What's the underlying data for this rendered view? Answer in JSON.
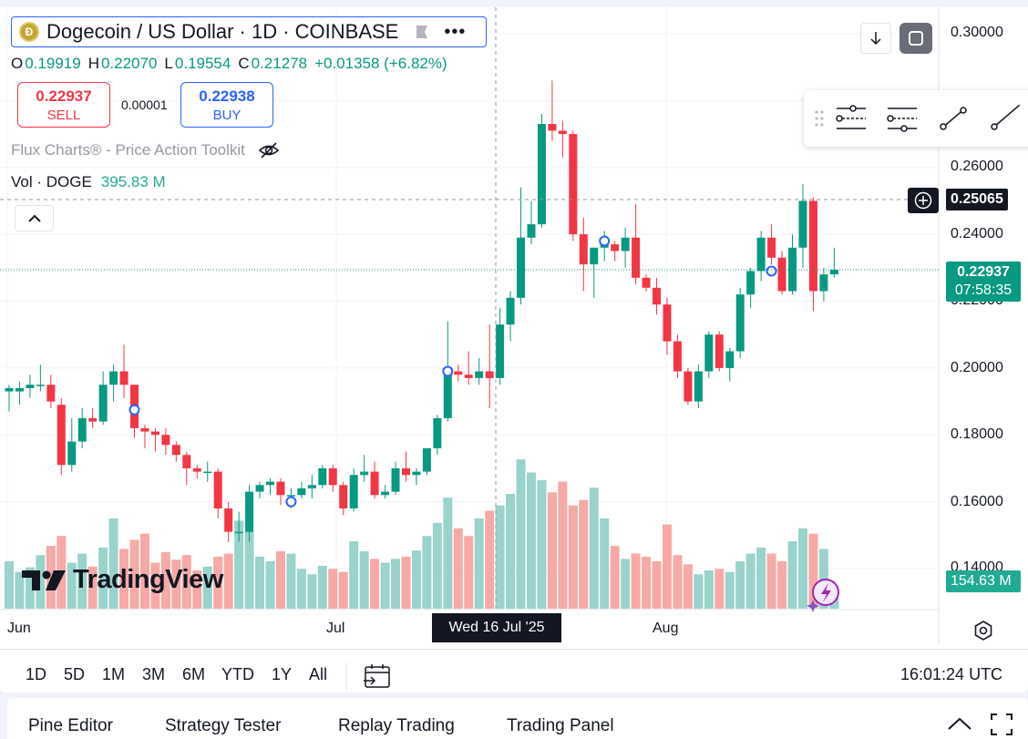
{
  "symbol": {
    "title": "Dogecoin / US Dollar · 1D · COINBASE",
    "logo_letter": "Ð"
  },
  "ohlc": {
    "o_label": "O",
    "o": "0.19919",
    "h_label": "H",
    "h": "0.22070",
    "l_label": "L",
    "l": "0.19554",
    "c_label": "C",
    "c": "0.21278",
    "change": "+0.01358 (+6.82%)"
  },
  "trade": {
    "sell_price": "0.22937",
    "sell_label": "SELL",
    "spread": "0.00001",
    "buy_price": "0.22938",
    "buy_label": "BUY"
  },
  "indicator": {
    "name": "Flux Charts® - Price Action Toolkit"
  },
  "volume": {
    "label": "Vol · DOGE",
    "value": "395.83 M"
  },
  "price_axis": [
    "0.30000",
    "0.26000",
    "0.24000",
    "0.22000",
    "0.20000",
    "0.18000",
    "0.16000",
    "0.14000"
  ],
  "crosshair_price": "0.25065",
  "last_price": {
    "price": "0.22937",
    "countdown": "07:58:35"
  },
  "vol_tag": "154.63 M",
  "time_axis": [
    "Jun",
    "Jul",
    "Aug"
  ],
  "crosshair_date": "Wed 16 Jul '25",
  "logo_text": "TradingView",
  "ranges": [
    "1D",
    "5D",
    "1M",
    "3M",
    "6M",
    "YTD",
    "1Y",
    "All"
  ],
  "clock": "16:01:24 UTC",
  "bottom_tabs": [
    "Pine Editor",
    "Strategy Tester",
    "Replay Trading",
    "Trading Panel"
  ],
  "colors": {
    "up": "#089981",
    "down": "#f23645",
    "vol_up": "#99d3cc",
    "vol_down": "#f7a9a7",
    "accent": "#2962ff"
  },
  "chart_data": {
    "type": "candlestick",
    "series_label": "DOGE/USD daily",
    "ylim": [
      0.13,
      0.3
    ],
    "candles": [
      {
        "o": 0.193,
        "h": 0.195,
        "l": 0.187,
        "c": 0.194,
        "v": 62
      },
      {
        "o": 0.193,
        "h": 0.196,
        "l": 0.189,
        "c": 0.194,
        "v": 48
      },
      {
        "o": 0.194,
        "h": 0.198,
        "l": 0.191,
        "c": 0.195,
        "v": 54
      },
      {
        "o": 0.195,
        "h": 0.201,
        "l": 0.193,
        "c": 0.195,
        "v": 70
      },
      {
        "o": 0.195,
        "h": 0.198,
        "l": 0.188,
        "c": 0.19,
        "v": 82
      },
      {
        "o": 0.189,
        "h": 0.191,
        "l": 0.168,
        "c": 0.171,
        "v": 95
      },
      {
        "o": 0.171,
        "h": 0.185,
        "l": 0.169,
        "c": 0.178,
        "v": 60
      },
      {
        "o": 0.178,
        "h": 0.188,
        "l": 0.176,
        "c": 0.185,
        "v": 72
      },
      {
        "o": 0.185,
        "h": 0.188,
        "l": 0.182,
        "c": 0.184,
        "v": 55
      },
      {
        "o": 0.184,
        "h": 0.199,
        "l": 0.183,
        "c": 0.195,
        "v": 80
      },
      {
        "o": 0.195,
        "h": 0.201,
        "l": 0.19,
        "c": 0.199,
        "v": 118
      },
      {
        "o": 0.199,
        "h": 0.207,
        "l": 0.191,
        "c": 0.195,
        "v": 78
      },
      {
        "o": 0.195,
        "h": 0.195,
        "l": 0.179,
        "c": 0.182,
        "v": 90
      },
      {
        "o": 0.182,
        "h": 0.183,
        "l": 0.176,
        "c": 0.181,
        "v": 98
      },
      {
        "o": 0.181,
        "h": 0.182,
        "l": 0.175,
        "c": 0.18,
        "v": 60
      },
      {
        "o": 0.18,
        "h": 0.182,
        "l": 0.174,
        "c": 0.177,
        "v": 74
      },
      {
        "o": 0.177,
        "h": 0.178,
        "l": 0.172,
        "c": 0.174,
        "v": 64
      },
      {
        "o": 0.174,
        "h": 0.175,
        "l": 0.165,
        "c": 0.17,
        "v": 70
      },
      {
        "o": 0.17,
        "h": 0.171,
        "l": 0.167,
        "c": 0.169,
        "v": 50
      },
      {
        "o": 0.169,
        "h": 0.172,
        "l": 0.166,
        "c": 0.169,
        "v": 55
      },
      {
        "o": 0.169,
        "h": 0.17,
        "l": 0.155,
        "c": 0.158,
        "v": 68
      },
      {
        "o": 0.158,
        "h": 0.16,
        "l": 0.148,
        "c": 0.151,
        "v": 72
      },
      {
        "o": 0.151,
        "h": 0.157,
        "l": 0.148,
        "c": 0.151,
        "v": 115
      },
      {
        "o": 0.151,
        "h": 0.165,
        "l": 0.148,
        "c": 0.163,
        "v": 102
      },
      {
        "o": 0.163,
        "h": 0.166,
        "l": 0.161,
        "c": 0.165,
        "v": 68
      },
      {
        "o": 0.165,
        "h": 0.167,
        "l": 0.162,
        "c": 0.166,
        "v": 62
      },
      {
        "o": 0.166,
        "h": 0.167,
        "l": 0.159,
        "c": 0.162,
        "v": 75
      },
      {
        "o": 0.162,
        "h": 0.164,
        "l": 0.158,
        "c": 0.162,
        "v": 72
      },
      {
        "o": 0.162,
        "h": 0.166,
        "l": 0.161,
        "c": 0.164,
        "v": 52
      },
      {
        "o": 0.164,
        "h": 0.168,
        "l": 0.161,
        "c": 0.165,
        "v": 45
      },
      {
        "o": 0.165,
        "h": 0.171,
        "l": 0.164,
        "c": 0.17,
        "v": 56
      },
      {
        "o": 0.17,
        "h": 0.171,
        "l": 0.163,
        "c": 0.165,
        "v": 52
      },
      {
        "o": 0.165,
        "h": 0.166,
        "l": 0.156,
        "c": 0.158,
        "v": 48
      },
      {
        "o": 0.158,
        "h": 0.17,
        "l": 0.157,
        "c": 0.168,
        "v": 88
      },
      {
        "o": 0.168,
        "h": 0.174,
        "l": 0.166,
        "c": 0.169,
        "v": 75
      },
      {
        "o": 0.169,
        "h": 0.172,
        "l": 0.161,
        "c": 0.162,
        "v": 65
      },
      {
        "o": 0.162,
        "h": 0.165,
        "l": 0.161,
        "c": 0.163,
        "v": 60
      },
      {
        "o": 0.163,
        "h": 0.172,
        "l": 0.162,
        "c": 0.17,
        "v": 65
      },
      {
        "o": 0.17,
        "h": 0.175,
        "l": 0.166,
        "c": 0.168,
        "v": 68
      },
      {
        "o": 0.168,
        "h": 0.17,
        "l": 0.165,
        "c": 0.169,
        "v": 76
      },
      {
        "o": 0.169,
        "h": 0.176,
        "l": 0.168,
        "c": 0.176,
        "v": 95
      },
      {
        "o": 0.176,
        "h": 0.186,
        "l": 0.174,
        "c": 0.185,
        "v": 112
      },
      {
        "o": 0.185,
        "h": 0.214,
        "l": 0.184,
        "c": 0.199,
        "v": 145
      },
      {
        "o": 0.199,
        "h": 0.201,
        "l": 0.196,
        "c": 0.198,
        "v": 105
      },
      {
        "o": 0.198,
        "h": 0.205,
        "l": 0.195,
        "c": 0.197,
        "v": 95
      },
      {
        "o": 0.197,
        "h": 0.203,
        "l": 0.195,
        "c": 0.199,
        "v": 118
      },
      {
        "o": 0.199,
        "h": 0.213,
        "l": 0.188,
        "c": 0.197,
        "v": 128
      },
      {
        "o": 0.197,
        "h": 0.218,
        "l": 0.195,
        "c": 0.213,
        "v": 135
      },
      {
        "o": 0.213,
        "h": 0.223,
        "l": 0.208,
        "c": 0.221,
        "v": 150
      },
      {
        "o": 0.221,
        "h": 0.254,
        "l": 0.219,
        "c": 0.239,
        "v": 195
      },
      {
        "o": 0.239,
        "h": 0.25,
        "l": 0.237,
        "c": 0.243,
        "v": 178
      },
      {
        "o": 0.243,
        "h": 0.276,
        "l": 0.242,
        "c": 0.273,
        "v": 168
      },
      {
        "o": 0.273,
        "h": 0.286,
        "l": 0.268,
        "c": 0.271,
        "v": 152
      },
      {
        "o": 0.271,
        "h": 0.274,
        "l": 0.263,
        "c": 0.27,
        "v": 166
      },
      {
        "o": 0.27,
        "h": 0.271,
        "l": 0.238,
        "c": 0.24,
        "v": 135
      },
      {
        "o": 0.24,
        "h": 0.245,
        "l": 0.223,
        "c": 0.231,
        "v": 142
      },
      {
        "o": 0.231,
        "h": 0.236,
        "l": 0.221,
        "c": 0.236,
        "v": 158
      },
      {
        "o": 0.236,
        "h": 0.241,
        "l": 0.232,
        "c": 0.237,
        "v": 118
      },
      {
        "o": 0.237,
        "h": 0.238,
        "l": 0.232,
        "c": 0.235,
        "v": 82
      },
      {
        "o": 0.235,
        "h": 0.242,
        "l": 0.23,
        "c": 0.239,
        "v": 65
      },
      {
        "o": 0.239,
        "h": 0.249,
        "l": 0.225,
        "c": 0.227,
        "v": 72
      },
      {
        "o": 0.227,
        "h": 0.228,
        "l": 0.223,
        "c": 0.224,
        "v": 68
      },
      {
        "o": 0.224,
        "h": 0.227,
        "l": 0.216,
        "c": 0.219,
        "v": 62
      },
      {
        "o": 0.219,
        "h": 0.221,
        "l": 0.204,
        "c": 0.208,
        "v": 110
      },
      {
        "o": 0.208,
        "h": 0.21,
        "l": 0.197,
        "c": 0.199,
        "v": 70
      },
      {
        "o": 0.199,
        "h": 0.2,
        "l": 0.189,
        "c": 0.19,
        "v": 58
      },
      {
        "o": 0.19,
        "h": 0.201,
        "l": 0.188,
        "c": 0.199,
        "v": 45
      },
      {
        "o": 0.199,
        "h": 0.211,
        "l": 0.197,
        "c": 0.21,
        "v": 50
      },
      {
        "o": 0.21,
        "h": 0.211,
        "l": 0.199,
        "c": 0.2,
        "v": 52
      },
      {
        "o": 0.2,
        "h": 0.206,
        "l": 0.196,
        "c": 0.205,
        "v": 48
      },
      {
        "o": 0.205,
        "h": 0.224,
        "l": 0.203,
        "c": 0.222,
        "v": 62
      },
      {
        "o": 0.222,
        "h": 0.23,
        "l": 0.218,
        "c": 0.229,
        "v": 72
      },
      {
        "o": 0.229,
        "h": 0.241,
        "l": 0.226,
        "c": 0.239,
        "v": 80
      },
      {
        "o": 0.239,
        "h": 0.243,
        "l": 0.231,
        "c": 0.233,
        "v": 72
      },
      {
        "o": 0.233,
        "h": 0.235,
        "l": 0.222,
        "c": 0.223,
        "v": 62
      },
      {
        "o": 0.223,
        "h": 0.24,
        "l": 0.222,
        "c": 0.236,
        "v": 88
      },
      {
        "o": 0.236,
        "h": 0.255,
        "l": 0.23,
        "c": 0.25,
        "v": 105
      },
      {
        "o": 0.25,
        "h": 0.251,
        "l": 0.217,
        "c": 0.223,
        "v": 98
      },
      {
        "o": 0.223,
        "h": 0.23,
        "l": 0.22,
        "c": 0.228,
        "v": 78
      },
      {
        "o": 0.228,
        "h": 0.236,
        "l": 0.227,
        "c": 0.2294,
        "v": 14
      }
    ]
  }
}
